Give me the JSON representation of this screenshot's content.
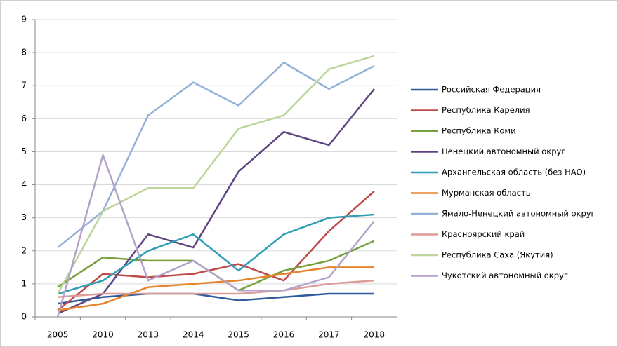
{
  "chart_data": {
    "type": "line",
    "categories": [
      "2005",
      "2010",
      "2013",
      "2014",
      "2015",
      "2016",
      "2017",
      "2018"
    ],
    "ylim": [
      0,
      9
    ],
    "yticks": [
      0,
      1,
      2,
      3,
      4,
      5,
      6,
      7,
      8,
      9
    ],
    "grid": true,
    "legend": "right",
    "series": [
      {
        "name": "Российская Федерация",
        "color": "#2f5b9a",
        "values": [
          0.4,
          0.6,
          0.7,
          0.7,
          0.5,
          0.6,
          0.7,
          0.7
        ]
      },
      {
        "name": "Республика Карелия",
        "color": "#be4b48",
        "values": [
          0.2,
          1.3,
          1.2,
          1.3,
          1.6,
          1.1,
          2.6,
          3.8
        ]
      },
      {
        "name": "Республика Коми",
        "color": "#77a03a",
        "values": [
          0.9,
          1.8,
          1.7,
          1.7,
          0.8,
          1.4,
          1.7,
          2.3
        ]
      },
      {
        "name": "Ненецкий автономный округ",
        "color": "#5f4580",
        "values": [
          0.1,
          0.7,
          2.5,
          2.1,
          4.4,
          5.6,
          5.2,
          6.9
        ]
      },
      {
        "name": "Архангельская область (без НАО)",
        "color": "#2f9db3",
        "values": [
          0.7,
          1.1,
          2.0,
          2.5,
          1.4,
          2.5,
          3.0,
          3.1
        ]
      },
      {
        "name": "Мурманская область",
        "color": "#e7832a",
        "values": [
          0.2,
          0.4,
          0.9,
          1.0,
          1.1,
          1.3,
          1.5,
          1.5
        ]
      },
      {
        "name": "Ямало-Ненецкий автономный округ",
        "color": "#95b0d8",
        "values": [
          2.1,
          3.2,
          6.1,
          7.1,
          6.4,
          7.7,
          6.9,
          7.6
        ]
      },
      {
        "name": "Красноярский край",
        "color": "#dd9b98",
        "values": [
          0.6,
          0.7,
          0.7,
          0.7,
          0.7,
          0.8,
          1.0,
          1.1
        ]
      },
      {
        "name": "Республика Саха (Якутия)",
        "color": "#bcd59a",
        "values": [
          0.7,
          3.2,
          3.9,
          3.9,
          5.7,
          6.1,
          7.5,
          7.9
        ]
      },
      {
        "name": "Чукотский автономный округ",
        "color": "#b3a3c9",
        "values": [
          0.0,
          4.9,
          1.1,
          1.7,
          0.8,
          0.8,
          1.2,
          2.9
        ]
      }
    ]
  }
}
